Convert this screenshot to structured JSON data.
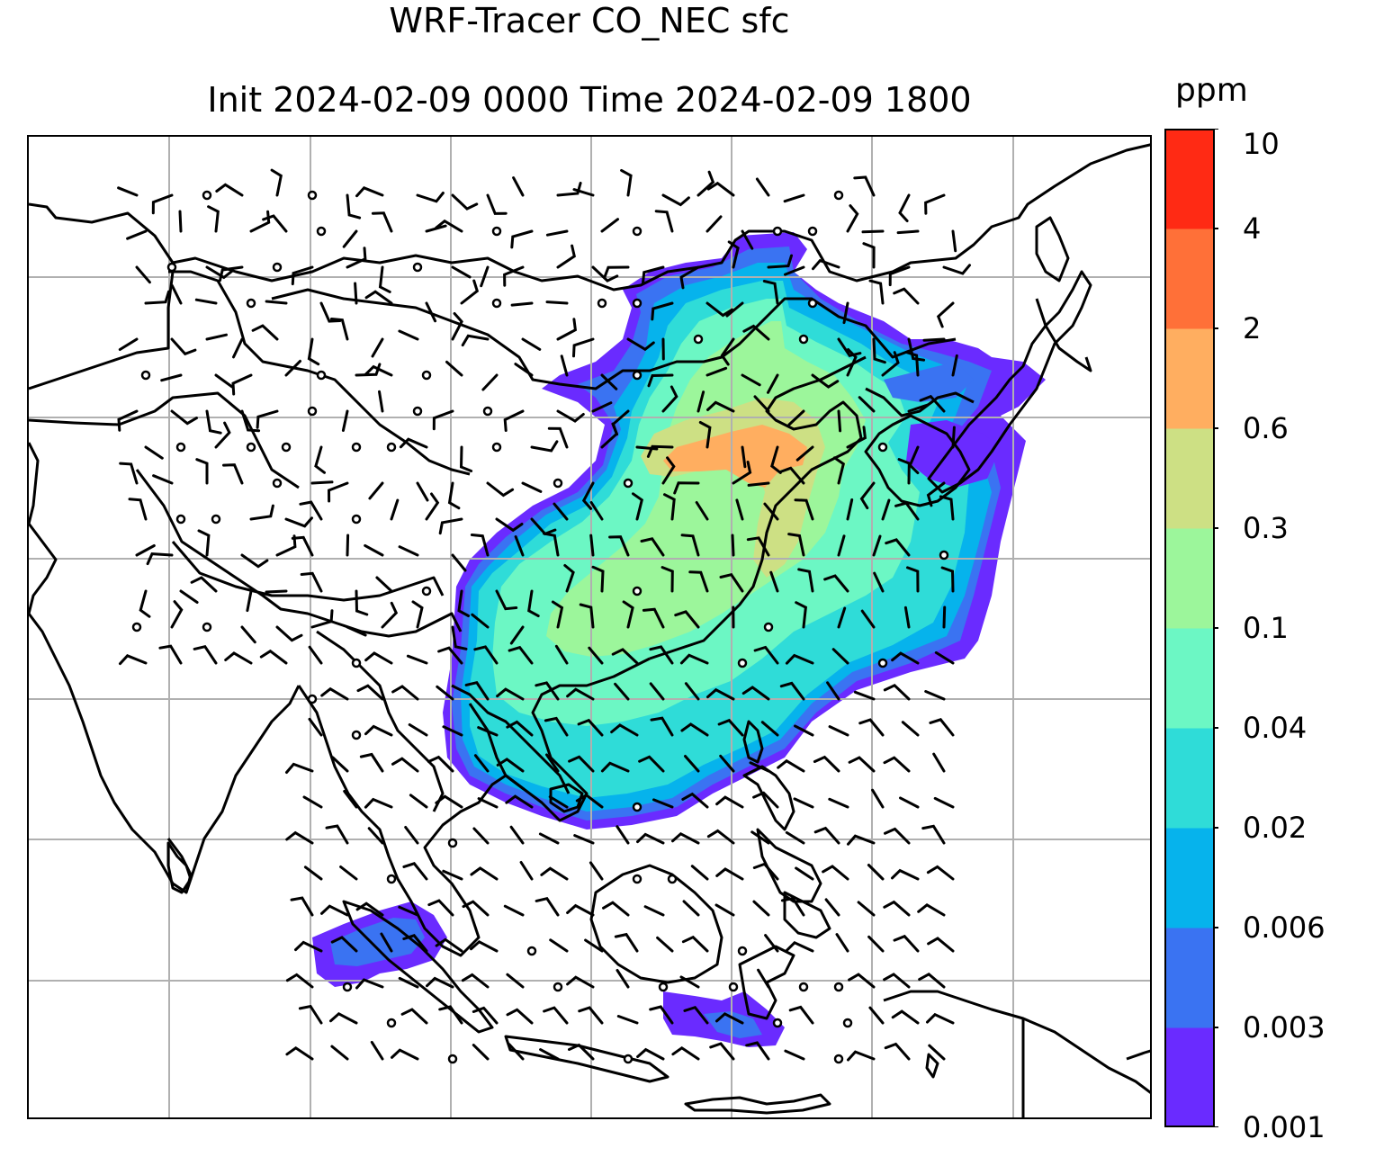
{
  "title": {
    "line1": "WRF-Tracer CO_NEC sfc",
    "line2": "Init 2024-02-09 0000 Time 2024-02-09 1800"
  },
  "colorbar": {
    "units": "ppm",
    "ticks": [
      "0.001",
      "0.003",
      "0.006",
      "0.02",
      "0.04",
      "0.1",
      "0.3",
      "0.6",
      "2",
      "4",
      "10"
    ],
    "colors": [
      "#6a2bff",
      "#3a73f2",
      "#06b3ec",
      "#2fdcd8",
      "#6cf7c4",
      "#9cf69b",
      "#cde084",
      "#ffae60",
      "#ff7038",
      "#ff2a14"
    ]
  },
  "map": {
    "gridlines": true,
    "background": "#ffffff",
    "coast_color": "#000000",
    "barb_color": "#000000"
  }
}
